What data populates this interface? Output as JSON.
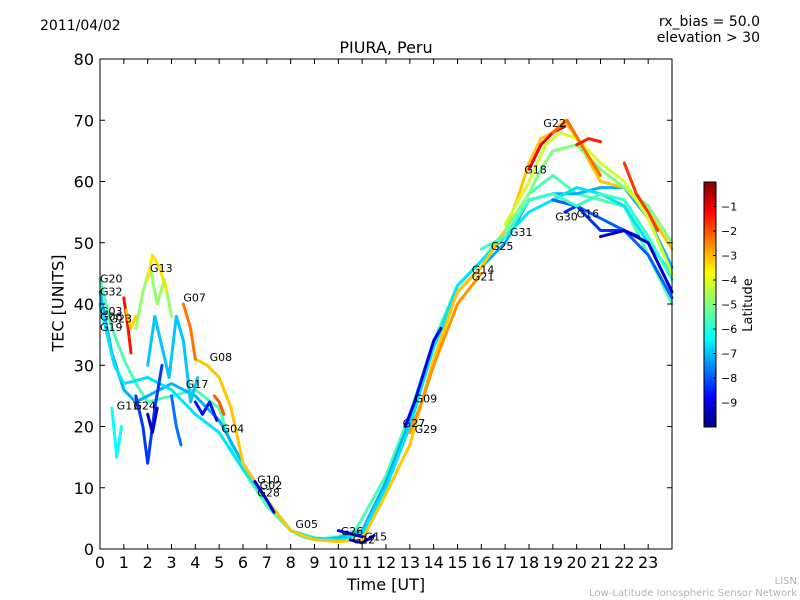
{
  "header": {
    "date": "2011/04/02",
    "rx_bias": "rx_bias = 50.0",
    "elevation": "elevation > 30"
  },
  "footer": {
    "line1": "LISN",
    "line2": "Low-Latitude Ionospheric Sensor Network"
  },
  "chart_data": {
    "type": "line",
    "title": "PIURA, Peru",
    "xlabel": "Time [UT]",
    "ylabel": "TEC [UNITS]",
    "xlim": [
      0,
      24
    ],
    "ylim": [
      0,
      80
    ],
    "x_ticks": [
      0,
      1,
      2,
      3,
      4,
      5,
      6,
      7,
      8,
      9,
      10,
      11,
      12,
      13,
      14,
      15,
      16,
      17,
      18,
      19,
      20,
      21,
      22,
      23
    ],
    "y_ticks": [
      0,
      10,
      20,
      30,
      40,
      50,
      60,
      70,
      80
    ],
    "grid": false,
    "colorbar": {
      "label": "Latitude",
      "range": [
        -10,
        0
      ],
      "ticks": [
        -1,
        -2,
        -3,
        -4,
        -5,
        -6,
        -7,
        -8,
        -9
      ],
      "colors": [
        "#00007f",
        "#0000ff",
        "#007fff",
        "#00ffff",
        "#7fff7f",
        "#ffff00",
        "#ff7f00",
        "#ff0000",
        "#7f0000"
      ]
    },
    "series": [
      {
        "lat": -5.5,
        "points": [
          [
            0,
            44
          ],
          [
            0.5,
            36
          ],
          [
            1,
            31
          ],
          [
            1.5,
            27
          ],
          [
            2,
            24
          ],
          [
            3,
            25
          ],
          [
            4,
            26
          ],
          [
            5,
            23
          ],
          [
            5.5,
            17
          ],
          [
            6,
            13
          ],
          [
            6.5,
            10
          ],
          [
            7,
            7
          ],
          [
            7.5,
            5
          ],
          [
            8,
            3
          ],
          [
            8.5,
            2
          ],
          [
            9,
            1.5
          ],
          [
            10,
            2
          ],
          [
            10.7,
            3
          ],
          [
            11,
            5
          ],
          [
            12,
            12
          ],
          [
            13,
            22
          ],
          [
            14,
            34
          ],
          [
            15,
            43
          ],
          [
            16,
            47
          ],
          [
            17,
            52
          ],
          [
            18,
            58
          ],
          [
            19,
            61
          ],
          [
            20,
            58
          ],
          [
            21,
            57
          ],
          [
            22,
            56
          ],
          [
            23,
            48
          ],
          [
            24,
            40
          ]
        ]
      },
      {
        "lat": -7,
        "points": [
          [
            0,
            42
          ],
          [
            0.5,
            32
          ],
          [
            1,
            26
          ],
          [
            1.5,
            24
          ],
          [
            2,
            25
          ],
          [
            3,
            27
          ],
          [
            4,
            25
          ],
          [
            5,
            21
          ],
          [
            6,
            14
          ],
          [
            7,
            8
          ],
          [
            8,
            3
          ],
          [
            9,
            1.5
          ],
          [
            10,
            1.8
          ],
          [
            11,
            3
          ],
          [
            12,
            11
          ],
          [
            13,
            21
          ],
          [
            14,
            33
          ],
          [
            15,
            42
          ],
          [
            16,
            46
          ],
          [
            17,
            50
          ],
          [
            18,
            57
          ],
          [
            19,
            58
          ],
          [
            20,
            58
          ],
          [
            21,
            59
          ],
          [
            22,
            59
          ],
          [
            23,
            54
          ],
          [
            24,
            46
          ]
        ]
      },
      {
        "lat": -6.5,
        "points": [
          [
            0,
            40
          ],
          [
            0.6,
            30
          ],
          [
            1,
            27
          ],
          [
            2,
            28
          ],
          [
            3,
            26
          ],
          [
            4,
            22
          ],
          [
            5,
            19
          ],
          [
            6,
            13
          ],
          [
            7,
            8
          ],
          [
            8,
            3
          ],
          [
            9,
            1.8
          ],
          [
            10,
            1.5
          ],
          [
            11,
            2.5
          ],
          [
            12,
            10
          ],
          [
            13,
            20
          ],
          [
            14,
            33
          ],
          [
            15,
            43
          ],
          [
            16,
            47
          ],
          [
            17,
            51
          ],
          [
            18,
            55
          ],
          [
            19,
            57
          ],
          [
            20,
            59
          ],
          [
            21,
            58
          ],
          [
            22,
            56
          ],
          [
            23,
            50
          ],
          [
            24,
            45
          ]
        ]
      },
      {
        "lat": -3.2,
        "points": [
          [
            4,
            31
          ],
          [
            4.5,
            30
          ],
          [
            5,
            28
          ],
          [
            5.5,
            23
          ],
          [
            6,
            14
          ],
          [
            7,
            8
          ],
          [
            8,
            3
          ],
          [
            9,
            1.5
          ],
          [
            10,
            1.2
          ],
          [
            11,
            1.5
          ],
          [
            12,
            9
          ],
          [
            13,
            17
          ],
          [
            14,
            31
          ],
          [
            15,
            42
          ],
          [
            16,
            46
          ],
          [
            17,
            52
          ],
          [
            17.5,
            57
          ],
          [
            18,
            63
          ],
          [
            18.5,
            67
          ],
          [
            19,
            68
          ],
          [
            19.5,
            70
          ],
          [
            20,
            67
          ],
          [
            21,
            60
          ],
          [
            22,
            59
          ],
          [
            23,
            55
          ],
          [
            24,
            49
          ]
        ]
      },
      {
        "lat": -5,
        "points": [
          [
            17,
            52
          ],
          [
            18,
            58
          ],
          [
            18.5,
            62
          ],
          [
            19,
            65
          ],
          [
            20,
            66
          ],
          [
            21,
            62
          ],
          [
            22,
            59
          ],
          [
            23,
            56
          ],
          [
            24,
            50
          ]
        ]
      },
      {
        "lat": -4.2,
        "points": [
          [
            17,
            53
          ],
          [
            18,
            60
          ],
          [
            18.7,
            66
          ],
          [
            19.3,
            68
          ],
          [
            20,
            67
          ],
          [
            21,
            63
          ],
          [
            22,
            60
          ],
          [
            23,
            54
          ],
          [
            24,
            45
          ]
        ]
      },
      {
        "lat": -1.2,
        "points": [
          [
            18,
            62
          ],
          [
            18.5,
            66
          ],
          [
            19,
            68
          ],
          [
            19.5,
            69
          ]
        ]
      },
      {
        "lat": -2.3,
        "points": [
          [
            19,
            68
          ],
          [
            19.6,
            70
          ],
          [
            20.2,
            66
          ],
          [
            21,
            61
          ]
        ]
      },
      {
        "lat": -1.5,
        "points": [
          [
            20,
            66
          ],
          [
            20.5,
            67
          ],
          [
            21,
            66.5
          ]
        ]
      },
      {
        "lat": -1.8,
        "points": [
          [
            22,
            63
          ],
          [
            22.5,
            58
          ],
          [
            23,
            55
          ],
          [
            23.4,
            52
          ]
        ]
      },
      {
        "lat": -7.8,
        "points": [
          [
            19,
            57
          ],
          [
            20,
            56
          ],
          [
            21,
            54
          ],
          [
            22,
            52
          ],
          [
            23,
            48
          ],
          [
            24,
            41
          ]
        ]
      },
      {
        "lat": -8.3,
        "points": [
          [
            19.5,
            55
          ],
          [
            20,
            56
          ],
          [
            21,
            52
          ],
          [
            22,
            52
          ],
          [
            22.6,
            51
          ]
        ]
      },
      {
        "lat": -9.2,
        "points": [
          [
            21,
            51
          ],
          [
            22,
            52
          ],
          [
            23,
            50
          ],
          [
            24,
            42
          ]
        ]
      },
      {
        "lat": -5.7,
        "points": [
          [
            16,
            49
          ],
          [
            17,
            51
          ],
          [
            18,
            57
          ],
          [
            19,
            58
          ],
          [
            20,
            56
          ],
          [
            21,
            58
          ],
          [
            22,
            57
          ],
          [
            23,
            51
          ],
          [
            24,
            44
          ]
        ]
      },
      {
        "lat": -8.8,
        "points": [
          [
            12.8,
            20
          ],
          [
            13.2,
            24
          ],
          [
            14,
            34
          ],
          [
            14.3,
            36
          ]
        ]
      },
      {
        "lat": -2.7,
        "points": [
          [
            13,
            19
          ],
          [
            13.5,
            24
          ],
          [
            14,
            30
          ],
          [
            15,
            40
          ],
          [
            16,
            45
          ]
        ]
      },
      {
        "lat": -8.7,
        "points": [
          [
            10,
            3
          ],
          [
            10.5,
            2.5
          ],
          [
            11,
            2
          ]
        ]
      },
      {
        "lat": -9.1,
        "points": [
          [
            10.5,
            1.5
          ],
          [
            11,
            1
          ],
          [
            11.5,
            2.2
          ]
        ]
      },
      {
        "lat": -9.2,
        "points": [
          [
            6.5,
            11
          ],
          [
            7,
            8
          ],
          [
            7.3,
            6
          ]
        ]
      },
      {
        "lat": -6.8,
        "points": [
          [
            2,
            30
          ],
          [
            2.3,
            38
          ],
          [
            2.6,
            33
          ],
          [
            2.9,
            28
          ],
          [
            3.2,
            38
          ],
          [
            3.5,
            34
          ],
          [
            3.8,
            24
          ],
          [
            4.1,
            28
          ]
        ]
      },
      {
        "lat": -4.8,
        "points": [
          [
            1.5,
            36
          ],
          [
            1.8,
            42
          ],
          [
            2.1,
            46
          ],
          [
            2.4,
            40
          ],
          [
            2.7,
            44
          ],
          [
            3,
            38
          ]
        ]
      },
      {
        "lat": -3.5,
        "points": [
          [
            2,
            44
          ],
          [
            2.2,
            48
          ],
          [
            2.5,
            46
          ],
          [
            2.8,
            42
          ]
        ]
      },
      {
        "lat": -2.4,
        "points": [
          [
            3.5,
            40
          ],
          [
            3.8,
            36
          ],
          [
            4,
            31
          ]
        ]
      },
      {
        "lat": -1.4,
        "points": [
          [
            1,
            41
          ],
          [
            1.15,
            37
          ],
          [
            1.3,
            32
          ]
        ]
      },
      {
        "lat": -8.2,
        "points": [
          [
            1.5,
            25
          ],
          [
            1.8,
            20
          ],
          [
            2,
            14
          ],
          [
            2.3,
            23
          ],
          [
            2.6,
            30
          ]
        ]
      },
      {
        "lat": -6.2,
        "points": [
          [
            0.5,
            23
          ],
          [
            0.7,
            15
          ],
          [
            0.9,
            20
          ]
        ]
      },
      {
        "lat": -9.3,
        "points": [
          [
            2,
            22
          ],
          [
            2.2,
            19
          ],
          [
            2.4,
            23
          ]
        ]
      },
      {
        "lat": -8.6,
        "points": [
          [
            4,
            24
          ],
          [
            4.3,
            22
          ],
          [
            4.6,
            24
          ],
          [
            4.9,
            21
          ]
        ]
      },
      {
        "lat": -2.1,
        "points": [
          [
            4.8,
            25
          ],
          [
            5,
            24
          ],
          [
            5.2,
            22
          ]
        ]
      },
      {
        "lat": -7.6,
        "points": [
          [
            3,
            25
          ],
          [
            3.2,
            20
          ],
          [
            3.4,
            17
          ]
        ]
      },
      {
        "lat": -3.3,
        "points": [
          [
            1.1,
            39
          ],
          [
            1.3,
            36
          ],
          [
            1.5,
            38
          ]
        ]
      }
    ],
    "satellite_labels": [
      {
        "text": "G20",
        "x": 0.0,
        "y": 43.5
      },
      {
        "text": "G32",
        "x": 0.0,
        "y": 41.4
      },
      {
        "text": "G03",
        "x": 0.0,
        "y": 38.2
      },
      {
        "text": "G06",
        "x": 0.0,
        "y": 37.3
      },
      {
        "text": "G23",
        "x": 0.4,
        "y": 37.0
      },
      {
        "text": "G19",
        "x": 0.0,
        "y": 35.6
      },
      {
        "text": "G13",
        "x": 2.1,
        "y": 45.2
      },
      {
        "text": "G07",
        "x": 3.5,
        "y": 40.4
      },
      {
        "text": "G08",
        "x": 4.6,
        "y": 30.7
      },
      {
        "text": "G17",
        "x": 3.6,
        "y": 26.3
      },
      {
        "text": "G11",
        "x": 0.7,
        "y": 22.8
      },
      {
        "text": "G24",
        "x": 1.4,
        "y": 22.8
      },
      {
        "text": "G04",
        "x": 5.1,
        "y": 19.0
      },
      {
        "text": "G10",
        "x": 6.6,
        "y": 10.7
      },
      {
        "text": "G02",
        "x": 6.7,
        "y": 9.8
      },
      {
        "text": "G28",
        "x": 6.6,
        "y": 8.6
      },
      {
        "text": "G05",
        "x": 8.2,
        "y": 3.4
      },
      {
        "text": "G26",
        "x": 10.1,
        "y": 2.3
      },
      {
        "text": "G12",
        "x": 10.6,
        "y": 0.9
      },
      {
        "text": "G15",
        "x": 11.1,
        "y": 1.4
      },
      {
        "text": "G27",
        "x": 12.7,
        "y": 19.9
      },
      {
        "text": "G29",
        "x": 13.2,
        "y": 18.9
      },
      {
        "text": "G09",
        "x": 13.2,
        "y": 23.9
      },
      {
        "text": "G14",
        "x": 15.6,
        "y": 45.0
      },
      {
        "text": "G21",
        "x": 15.6,
        "y": 43.8
      },
      {
        "text": "G25",
        "x": 16.4,
        "y": 48.8
      },
      {
        "text": "G31",
        "x": 17.2,
        "y": 51.1
      },
      {
        "text": "G18",
        "x": 17.8,
        "y": 61.3
      },
      {
        "text": "G22",
        "x": 18.6,
        "y": 68.9
      },
      {
        "text": "G30",
        "x": 19.1,
        "y": 53.6
      },
      {
        "text": "G16",
        "x": 20.0,
        "y": 54.1
      }
    ]
  }
}
